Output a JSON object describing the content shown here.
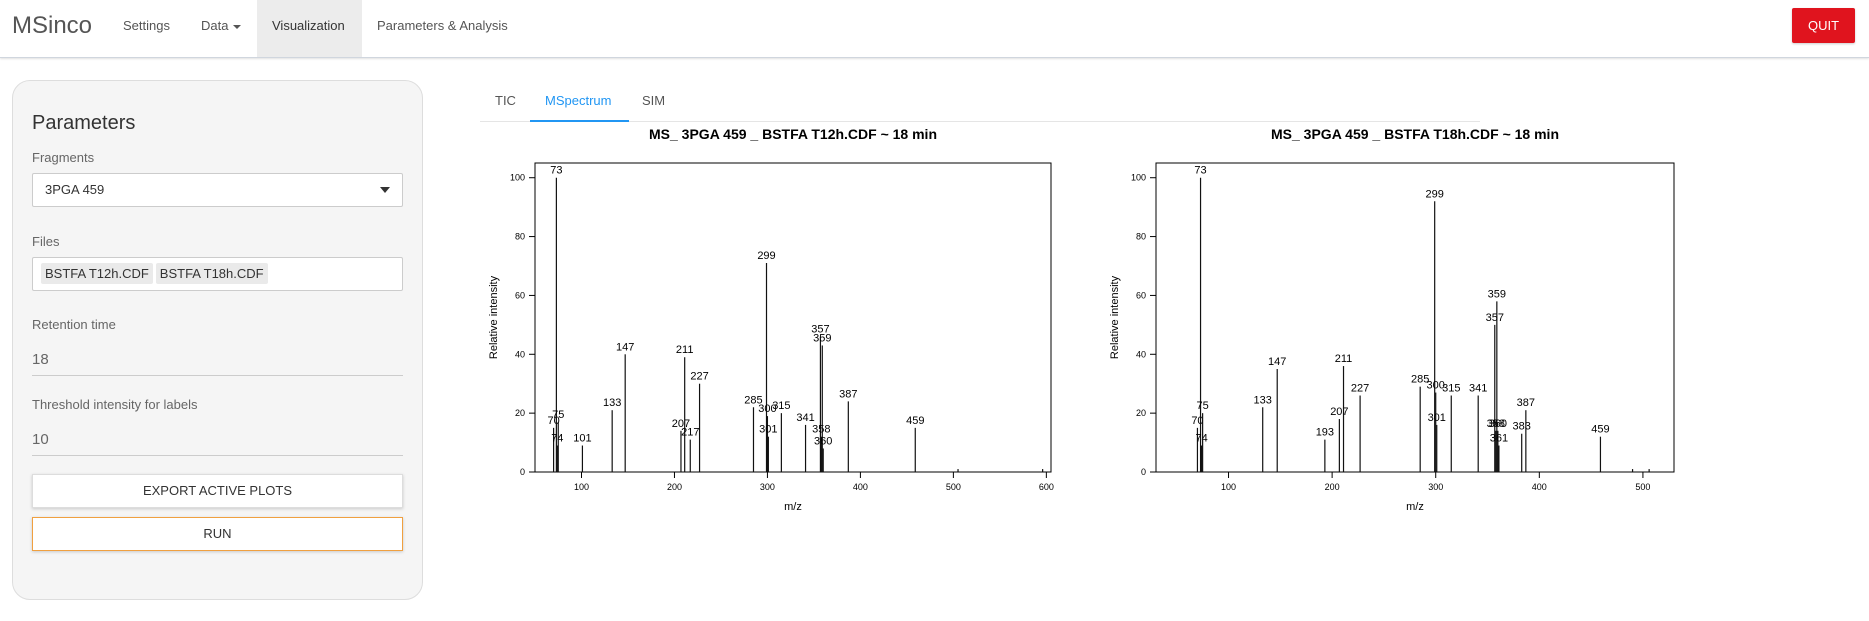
{
  "app": {
    "brand": "MSinco",
    "nav": [
      "Settings",
      "Data",
      "Visualization",
      "Parameters & Analysis"
    ],
    "quit_label": "QUIT",
    "accent_color": "#2196f3",
    "quit_color": "#e0141e"
  },
  "panel": {
    "title": "Parameters",
    "fragments_label": "Fragments",
    "fragments_value": "3PGA 459",
    "files_label": "Files",
    "files": [
      "BSTFA T12h.CDF",
      "BSTFA T18h.CDF"
    ],
    "rt_label": "Retention time",
    "rt_value": "18",
    "threshold_label": "Threshold intensity for labels",
    "threshold_value": "10",
    "export_label": "EXPORT ACTIVE PLOTS",
    "run_label": "RUN"
  },
  "tabs": [
    "TIC",
    "MSpectrum",
    "SIM"
  ],
  "chart_data": [
    {
      "type": "bar",
      "title": "MS_ 3PGA 459 _ BSTFA T12h.CDF ~ 18 min",
      "xlabel": "m/z",
      "ylabel": "Relative intensity",
      "xlim": [
        50,
        605
      ],
      "ylim": [
        0,
        105
      ],
      "xticks": [
        100,
        200,
        300,
        400,
        500,
        600
      ],
      "yticks": [
        0,
        20,
        40,
        60,
        80,
        100
      ],
      "peaks": [
        {
          "x": 70,
          "y": 15,
          "label": "70"
        },
        {
          "x": 73,
          "y": 100,
          "label": "73"
        },
        {
          "x": 74,
          "y": 9,
          "label": "74"
        },
        {
          "x": 75,
          "y": 17,
          "label": "75"
        },
        {
          "x": 101,
          "y": 9,
          "label": "101"
        },
        {
          "x": 133,
          "y": 21,
          "label": "133"
        },
        {
          "x": 147,
          "y": 40,
          "label": "147"
        },
        {
          "x": 207,
          "y": 14,
          "label": "207"
        },
        {
          "x": 211,
          "y": 39,
          "label": "211"
        },
        {
          "x": 217,
          "y": 11,
          "label": "217"
        },
        {
          "x": 227,
          "y": 30,
          "label": "227"
        },
        {
          "x": 285,
          "y": 22,
          "label": "285"
        },
        {
          "x": 299,
          "y": 71,
          "label": "299"
        },
        {
          "x": 300,
          "y": 19,
          "label": "300"
        },
        {
          "x": 301,
          "y": 12,
          "label": "301"
        },
        {
          "x": 315,
          "y": 20,
          "label": "315"
        },
        {
          "x": 341,
          "y": 16,
          "label": "341"
        },
        {
          "x": 357,
          "y": 46,
          "label": "357"
        },
        {
          "x": 358,
          "y": 12,
          "label": "358"
        },
        {
          "x": 359,
          "y": 43,
          "label": "359"
        },
        {
          "x": 360,
          "y": 8,
          "label": "360"
        },
        {
          "x": 387,
          "y": 24,
          "label": "387"
        },
        {
          "x": 459,
          "y": 15,
          "label": "459"
        },
        {
          "x": 505,
          "y": 1,
          "label": ""
        },
        {
          "x": 596,
          "y": 1,
          "label": ""
        }
      ]
    },
    {
      "type": "bar",
      "title": "MS_ 3PGA 459 _ BSTFA T18h.CDF ~ 18 min",
      "xlabel": "m/z",
      "ylabel": "Relative intensity",
      "xlim": [
        30,
        530
      ],
      "ylim": [
        0,
        105
      ],
      "xticks": [
        100,
        200,
        300,
        400,
        500
      ],
      "yticks": [
        0,
        20,
        40,
        60,
        80,
        100
      ],
      "peaks": [
        {
          "x": 70,
          "y": 15,
          "label": "70"
        },
        {
          "x": 73,
          "y": 100,
          "label": "73"
        },
        {
          "x": 74,
          "y": 9,
          "label": "74"
        },
        {
          "x": 75,
          "y": 20,
          "label": "75"
        },
        {
          "x": 133,
          "y": 22,
          "label": "133"
        },
        {
          "x": 147,
          "y": 35,
          "label": "147"
        },
        {
          "x": 193,
          "y": 11,
          "label": "193"
        },
        {
          "x": 207,
          "y": 18,
          "label": "207"
        },
        {
          "x": 211,
          "y": 36,
          "label": "211"
        },
        {
          "x": 227,
          "y": 26,
          "label": "227"
        },
        {
          "x": 285,
          "y": 29,
          "label": "285"
        },
        {
          "x": 299,
          "y": 92,
          "label": "299"
        },
        {
          "x": 300,
          "y": 27,
          "label": "300"
        },
        {
          "x": 301,
          "y": 16,
          "label": "301"
        },
        {
          "x": 315,
          "y": 26,
          "label": "315"
        },
        {
          "x": 341,
          "y": 26,
          "label": "341"
        },
        {
          "x": 357,
          "y": 50,
          "label": "357"
        },
        {
          "x": 358,
          "y": 14,
          "label": "358"
        },
        {
          "x": 359,
          "y": 58,
          "label": "359"
        },
        {
          "x": 360,
          "y": 14,
          "label": "360"
        },
        {
          "x": 361,
          "y": 9,
          "label": "361"
        },
        {
          "x": 383,
          "y": 13,
          "label": "383"
        },
        {
          "x": 387,
          "y": 21,
          "label": "387"
        },
        {
          "x": 459,
          "y": 12,
          "label": "459"
        },
        {
          "x": 490,
          "y": 1,
          "label": ""
        },
        {
          "x": 506,
          "y": 1,
          "label": ""
        }
      ]
    }
  ]
}
